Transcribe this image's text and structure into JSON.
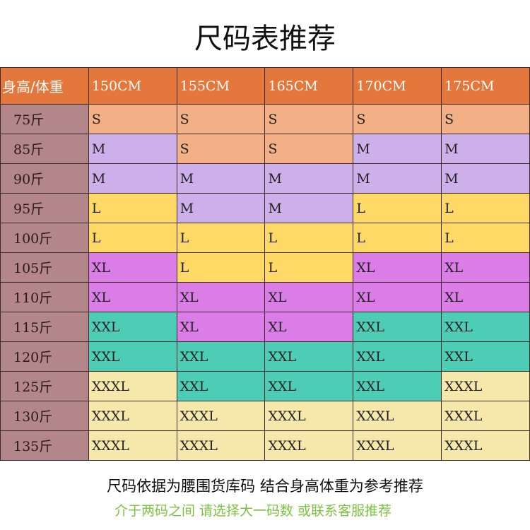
{
  "title": "尺码表推荐",
  "table": {
    "corner": "身高/体重",
    "heights": [
      "150CM",
      "155CM",
      "165CM",
      "170CM",
      "175CM"
    ],
    "rows": [
      {
        "weight": "75斤",
        "sizes": [
          "S",
          "S",
          "S",
          "S",
          "S"
        ]
      },
      {
        "weight": "85斤",
        "sizes": [
          "M",
          "S",
          "S",
          "M",
          "M"
        ]
      },
      {
        "weight": "90斤",
        "sizes": [
          "M",
          "M",
          "M",
          "M",
          "M"
        ]
      },
      {
        "weight": "95斤",
        "sizes": [
          "L",
          "M",
          "M",
          "L",
          "L"
        ]
      },
      {
        "weight": "100斤",
        "sizes": [
          "L",
          "L",
          "L",
          "L",
          "L"
        ]
      },
      {
        "weight": "105斤",
        "sizes": [
          "XL",
          "L",
          "L",
          "XL",
          "XL"
        ]
      },
      {
        "weight": "110斤",
        "sizes": [
          "XL",
          "XL",
          "XL",
          "XL",
          "XL"
        ]
      },
      {
        "weight": "115斤",
        "sizes": [
          "XXL",
          "XL",
          "XL",
          "XXL",
          "XXL"
        ]
      },
      {
        "weight": "120斤",
        "sizes": [
          "XXL",
          "XXL",
          "XXL",
          "XXL",
          "XXL"
        ]
      },
      {
        "weight": "125斤",
        "sizes": [
          "XXXL",
          "XXL",
          "XXL",
          "XXL",
          "XXXL"
        ]
      },
      {
        "weight": "130斤",
        "sizes": [
          "XXXL",
          "XXXL",
          "XXXL",
          "XXXL",
          "XXXL"
        ]
      },
      {
        "weight": "135斤",
        "sizes": [
          "XXXL",
          "XXXL",
          "XXXL",
          "XXXL",
          "XXXL"
        ]
      }
    ]
  },
  "size_colors": {
    "S": "#F3AF85",
    "M": "#CDB0EA",
    "L": "#FFD966",
    "XL": "#DB7DE6",
    "XXL": "#4ECDB6",
    "XXXL": "#F6E7AB"
  },
  "note_main": "尺码依据为腰围货库码 结合身高体重为参考推荐",
  "note_sub": "介于两码之间 请选择大一码数 或联系客服推荐"
}
